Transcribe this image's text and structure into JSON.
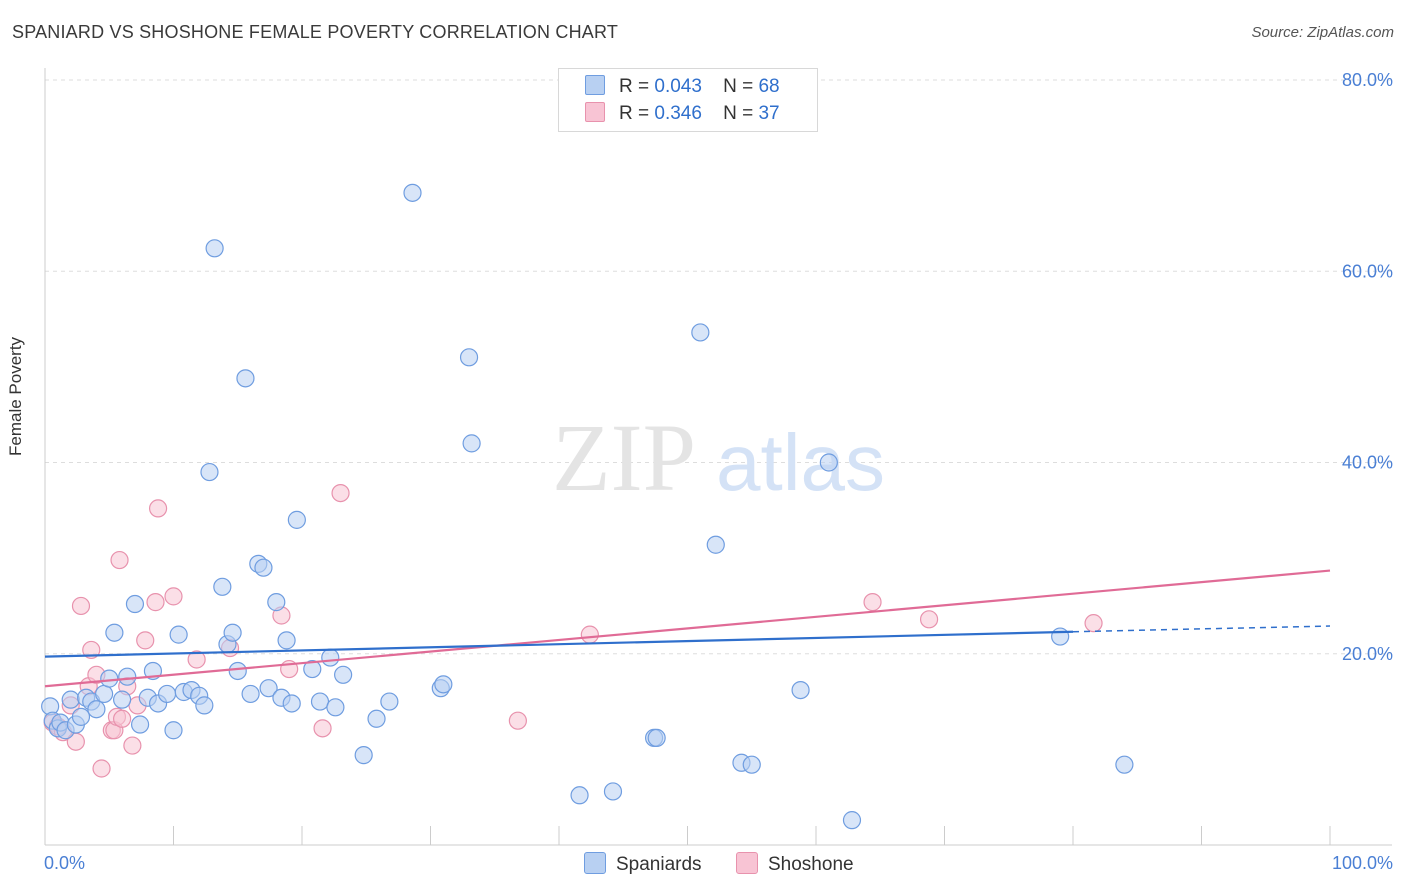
{
  "header": {
    "title": "SPANIARD VS SHOSHONE FEMALE POVERTY CORRELATION CHART",
    "source": "Source: ZipAtlas.com"
  },
  "watermark": {
    "zip": "ZIP",
    "atlas": "atlas"
  },
  "legend": {
    "rows": [
      {
        "r_label": "R =",
        "r_value": "0.043",
        "n_label": "N =",
        "n_value": "68"
      },
      {
        "r_label": "R =",
        "r_value": "0.346",
        "n_label": "N =",
        "n_value": "37"
      }
    ]
  },
  "colors": {
    "blue_fill": "#b8d0f2",
    "blue_stroke": "#6f9de0",
    "blue_line": "#2f6fcc",
    "pink_fill": "#f8c4d4",
    "pink_stroke": "#e892ad",
    "pink_line": "#e06b96",
    "grid": "#dddddd",
    "axis_label": "#4a7fd4"
  },
  "chart_data": {
    "type": "scatter",
    "title": "SPANIARD VS SHOSHONE FEMALE POVERTY CORRELATION CHART",
    "xlabel": "",
    "ylabel": "Female Poverty",
    "xlim": [
      0,
      100
    ],
    "ylim": [
      0,
      80
    ],
    "x_tick_labels": [
      "0.0%",
      "100.0%"
    ],
    "y_ticks": [
      20,
      40,
      60,
      80
    ],
    "y_tick_labels": [
      "20.0%",
      "40.0%",
      "60.0%",
      "80.0%"
    ],
    "grid": true,
    "legend_placement": "top-center",
    "series": [
      {
        "name": "Spaniards",
        "color": "#b8d0f2",
        "trend": {
          "x0": 0,
          "y0": 19.7,
          "x1": 80,
          "y1": 22.3,
          "dash_to_x": 100,
          "dash_to_y": 22.9
        },
        "points": [
          [
            0.4,
            14.5
          ],
          [
            0.6,
            13.0
          ],
          [
            1.0,
            12.2
          ],
          [
            1.2,
            12.8
          ],
          [
            1.6,
            12.0
          ],
          [
            2.0,
            15.2
          ],
          [
            2.4,
            12.6
          ],
          [
            2.8,
            13.4
          ],
          [
            3.2,
            15.4
          ],
          [
            3.6,
            15.0
          ],
          [
            4.0,
            14.2
          ],
          [
            4.6,
            15.8
          ],
          [
            5.0,
            17.4
          ],
          [
            5.4,
            22.2
          ],
          [
            6.0,
            15.2
          ],
          [
            6.4,
            17.6
          ],
          [
            7.0,
            25.2
          ],
          [
            7.4,
            12.6
          ],
          [
            8.0,
            15.4
          ],
          [
            8.4,
            18.2
          ],
          [
            8.8,
            14.8
          ],
          [
            9.5,
            15.8
          ],
          [
            10.0,
            12.0
          ],
          [
            10.4,
            22.0
          ],
          [
            10.8,
            16.0
          ],
          [
            11.4,
            16.2
          ],
          [
            12.0,
            15.6
          ],
          [
            12.4,
            14.6
          ],
          [
            12.8,
            39.0
          ],
          [
            13.2,
            62.4
          ],
          [
            13.8,
            27.0
          ],
          [
            14.2,
            21.0
          ],
          [
            14.6,
            22.2
          ],
          [
            15.0,
            18.2
          ],
          [
            15.6,
            48.8
          ],
          [
            16.0,
            15.8
          ],
          [
            16.6,
            29.4
          ],
          [
            17.0,
            29.0
          ],
          [
            17.4,
            16.4
          ],
          [
            18.0,
            25.4
          ],
          [
            18.4,
            15.4
          ],
          [
            18.8,
            21.4
          ],
          [
            19.2,
            14.8
          ],
          [
            19.6,
            34.0
          ],
          [
            20.8,
            18.4
          ],
          [
            21.4,
            15.0
          ],
          [
            22.2,
            19.6
          ],
          [
            22.6,
            14.4
          ],
          [
            23.2,
            17.8
          ],
          [
            24.8,
            9.4
          ],
          [
            25.8,
            13.2
          ],
          [
            26.8,
            15.0
          ],
          [
            28.6,
            68.2
          ],
          [
            30.8,
            16.4
          ],
          [
            31.0,
            16.8
          ],
          [
            33.0,
            51.0
          ],
          [
            33.2,
            42.0
          ],
          [
            41.6,
            5.2
          ],
          [
            44.2,
            5.6
          ],
          [
            47.4,
            11.2
          ],
          [
            47.6,
            11.2
          ],
          [
            51.0,
            53.6
          ],
          [
            52.2,
            31.4
          ],
          [
            54.2,
            8.6
          ],
          [
            55.0,
            8.4
          ],
          [
            58.8,
            16.2
          ],
          [
            61.0,
            40.0
          ],
          [
            62.8,
            2.6
          ],
          [
            79.0,
            21.8
          ],
          [
            84.0,
            8.4
          ]
        ]
      },
      {
        "name": "Shoshone",
        "color": "#f8c4d4",
        "trend": {
          "x0": 0,
          "y0": 16.6,
          "x1": 100,
          "y1": 28.7
        },
        "points": [
          [
            0.6,
            12.8
          ],
          [
            1.0,
            12.4
          ],
          [
            1.4,
            11.8
          ],
          [
            2.0,
            14.6
          ],
          [
            2.4,
            10.8
          ],
          [
            2.8,
            25.0
          ],
          [
            3.4,
            16.6
          ],
          [
            3.6,
            20.4
          ],
          [
            4.0,
            17.8
          ],
          [
            4.4,
            8.0
          ],
          [
            5.2,
            12.0
          ],
          [
            5.4,
            12.0
          ],
          [
            5.6,
            13.4
          ],
          [
            5.8,
            29.8
          ],
          [
            6.0,
            13.2
          ],
          [
            6.4,
            16.6
          ],
          [
            6.8,
            10.4
          ],
          [
            7.2,
            14.6
          ],
          [
            7.8,
            21.4
          ],
          [
            8.6,
            25.4
          ],
          [
            8.8,
            35.2
          ],
          [
            10.0,
            26.0
          ],
          [
            11.8,
            19.4
          ],
          [
            14.4,
            20.6
          ],
          [
            18.4,
            24.0
          ],
          [
            19.0,
            18.4
          ],
          [
            21.6,
            12.2
          ],
          [
            23.0,
            36.8
          ],
          [
            36.8,
            13.0
          ],
          [
            42.4,
            22.0
          ],
          [
            64.4,
            25.4
          ],
          [
            68.8,
            23.6
          ],
          [
            81.6,
            23.2
          ]
        ]
      }
    ]
  },
  "bottom_legend": {
    "items": [
      {
        "label": "Spaniards"
      },
      {
        "label": "Shoshone"
      }
    ]
  }
}
